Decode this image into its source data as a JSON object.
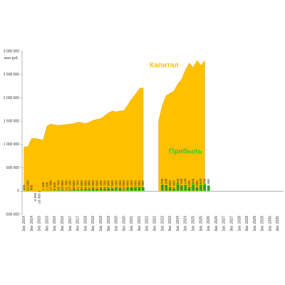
{
  "chart_data": {
    "type": "area-bar",
    "y_label": "млн руб.",
    "ylim": [
      -500000,
      3000000
    ],
    "yticks": [
      {
        "value": -500000,
        "label": "-500 000"
      },
      0,
      {
        "value": 500000,
        "label": "500 000"
      },
      {
        "value": 1000000,
        "label": "1 000 000"
      },
      {
        "value": 1500000,
        "label": "1 500 000"
      },
      {
        "value": 2000000,
        "label": "2 000 000"
      },
      {
        "value": 2500000,
        "label": "2 500 000"
      },
      {
        "value": 3000000,
        "label": "3 000 000"
      }
    ],
    "categories": [
      "1кв. 2014",
      null,
      "3кв. 2014",
      null,
      "1кв. 2015",
      null,
      "3кв. 2015",
      null,
      "1кв. 2016",
      null,
      "3кв. 2016",
      null,
      "1кв. 2017",
      null,
      "3кв. 2017",
      null,
      "1кв. 2018",
      null,
      "3кв. 2018",
      null,
      "1кв. 2019",
      null,
      "3кв. 2019",
      null,
      "1кв. 2020",
      null,
      "3кв. 2020",
      null,
      "1кв. 2021",
      null,
      "3кв. 2021",
      null,
      "1кв. 2022",
      null,
      "3кв. 2022",
      null,
      "1кв. 2023",
      null,
      "3кв. 2023",
      null,
      "1кв. 2024",
      null,
      "3кв. 2024",
      null,
      "1кв. 2025",
      null,
      "3кв. 2025",
      null,
      "1кв. 2026",
      null,
      "3кв. 2026",
      null,
      "1кв. 2027",
      null,
      "3кв. 2027",
      null,
      "1кв. 2028",
      null,
      "3кв. 2028",
      null,
      "1кв. 2029",
      null,
      "3кв. 2029",
      null,
      "1кв. 2030",
      null,
      "3кв. 2030",
      null
    ],
    "series": [
      {
        "name": "Капитал",
        "color": "#ffc000",
        "kind": "area",
        "values": [
          950000,
          950000,
          1130000,
          1130000,
          1110000,
          1100000,
          1400000,
          1440000,
          1420000,
          1410000,
          1420000,
          1430000,
          1440000,
          1450000,
          1480000,
          1470000,
          1450000,
          1480000,
          1520000,
          1540000,
          1560000,
          1620000,
          1680000,
          1720000,
          1700000,
          1720000,
          1730000,
          1850000,
          1980000,
          2080000,
          2200000,
          2220000,
          null,
          null,
          null,
          1500000,
          1850000,
          2050000,
          2100000,
          2150000,
          2300000,
          2400000,
          2600000,
          2750000,
          2650000,
          2800000,
          2700000,
          2800000,
          null,
          null,
          null,
          null,
          null,
          null,
          null,
          null,
          null,
          null,
          null,
          null,
          null,
          null,
          null,
          null,
          null,
          null,
          null,
          null
        ]
      },
      {
        "name": "Прибыль",
        "color": "#33cc33",
        "kind": "bar",
        "values": [
          400,
          15000,
          900,
          -4000,
          -18300,
          1200,
          1100,
          12900,
          8600,
          18700,
          19900,
          12700,
          17100,
          30800,
          21700,
          25600,
          44600,
          32300,
          46900,
          41600,
          46100,
          38700,
          67800,
          57500,
          73200,
          55200,
          25000,
          79400,
          86100,
          92000,
          86000,
          79900,
          null,
          null,
          null,
          null,
          144700,
          134200,
          91800,
          50400,
          153600,
          109100,
          141100,
          91500,
          152900,
          76800,
          141600,
          155200,
          115900,
          null,
          null,
          null,
          null,
          null,
          null,
          null,
          null,
          null,
          null,
          null,
          null,
          null,
          null,
          null,
          null,
          null,
          null,
          null
        ],
        "value_labels": [
          "400",
          "15 000",
          "900",
          "-4 000",
          "-18 300",
          "1 200",
          "1 100",
          "12 900",
          "8 600",
          "18 700",
          "19 900",
          "12 700",
          "17 100",
          "30 800",
          "21 700",
          "25 600",
          "44 600",
          "32 300",
          "46 900",
          "41 600",
          "46 100",
          "38 700",
          "67 800",
          "57 500",
          "73 200",
          "55 200",
          "25 000",
          "79 400",
          "86 100",
          "92 000",
          "86 000",
          "79 900",
          null,
          null,
          null,
          null,
          "144 700",
          "134 200",
          "91 800",
          "50 400",
          "153 600",
          "109 100",
          "141 100",
          "91 500",
          "152 900",
          "76 800",
          "141 600",
          "155 200",
          "115 900",
          null,
          null,
          null,
          null,
          null,
          null,
          null,
          null,
          null,
          null,
          null,
          null,
          null,
          null,
          null,
          null,
          null,
          null,
          null
        ]
      }
    ]
  }
}
